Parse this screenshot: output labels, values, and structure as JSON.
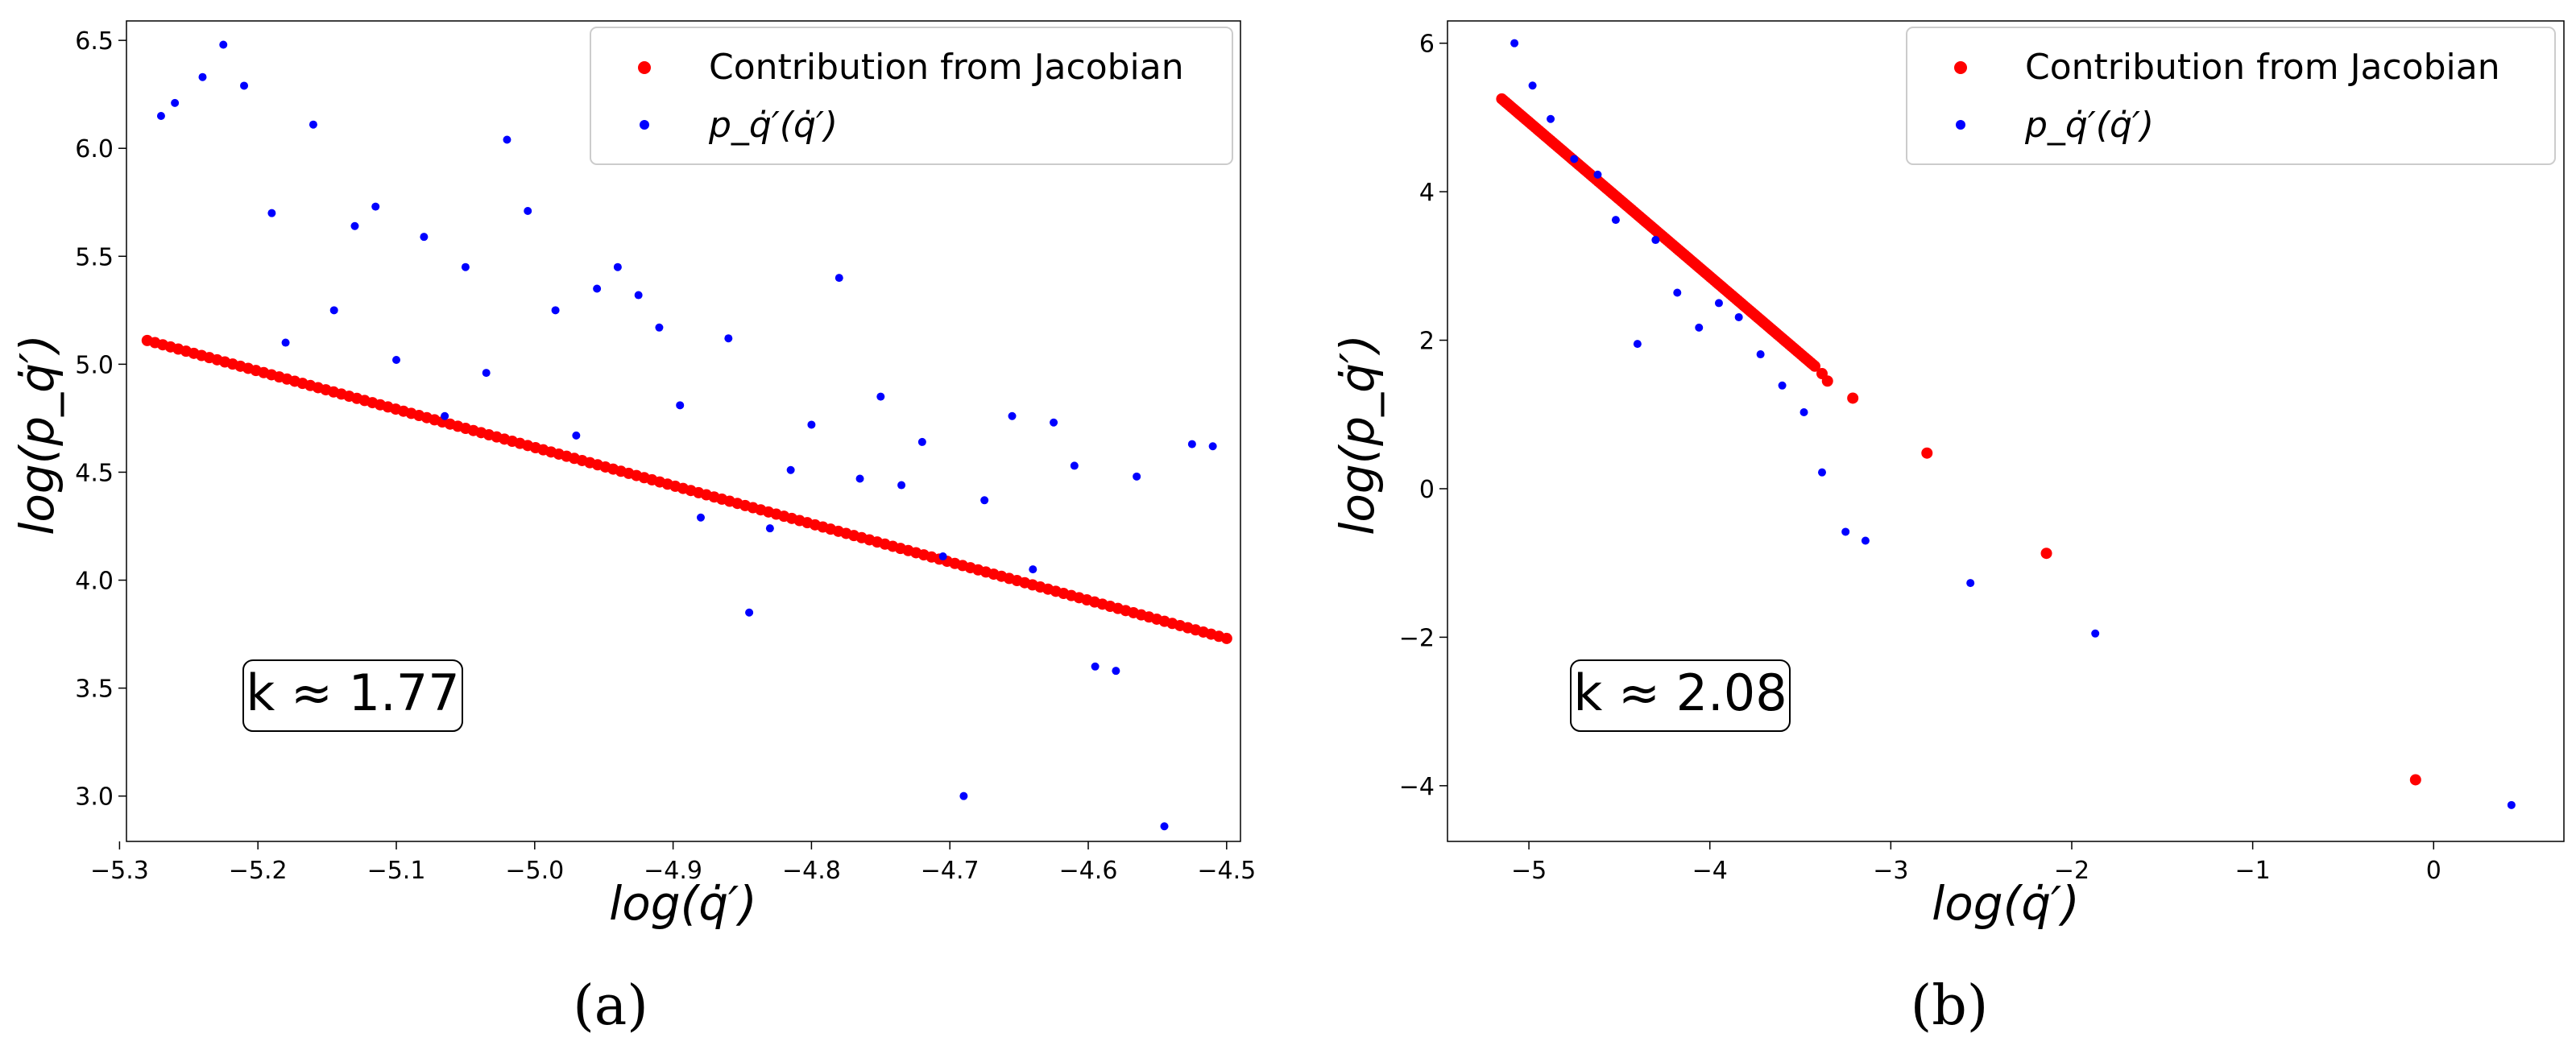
{
  "chart_data": [
    {
      "type": "scatter",
      "panel_label": "(a)",
      "xlabel": "log(q̇′)",
      "ylabel": "log(p_q̇′)",
      "xlim": [
        -5.295,
        -4.49
      ],
      "ylim": [
        2.79,
        6.59
      ],
      "xticks": [
        -5.3,
        -5.2,
        -5.1,
        -5.0,
        -4.9,
        -4.8,
        -4.7,
        -4.6,
        -4.5
      ],
      "xtick_labels": [
        "−5.3",
        "−5.2",
        "−5.1",
        "−5.0",
        "−4.9",
        "−4.8",
        "−4.7",
        "−4.6",
        "−4.5"
      ],
      "yticks": [
        3.0,
        3.5,
        4.0,
        4.5,
        5.0,
        5.5,
        6.0,
        6.5
      ],
      "ytick_labels": [
        "3.0",
        "3.5",
        "4.0",
        "4.5",
        "5.0",
        "5.5",
        "6.0",
        "6.5"
      ],
      "legend_position": "top-right",
      "annotation": "k ≈ 1.77",
      "series": [
        {
          "name": "Contribution from Jacobian",
          "color": "#ff0000",
          "generated_line": {
            "x_start": -5.28,
            "x_end": -4.5,
            "y_start": 5.11,
            "y_end": 3.73,
            "count": 140
          },
          "x": [],
          "y": []
        },
        {
          "name": "p_q̇′(q̇′)",
          "color": "#0000ff",
          "x": [
            -5.27,
            -5.26,
            -5.24,
            -5.225,
            -5.21,
            -5.19,
            -5.18,
            -5.16,
            -5.145,
            -5.13,
            -5.115,
            -5.1,
            -5.08,
            -5.065,
            -5.05,
            -5.035,
            -5.02,
            -5.005,
            -4.985,
            -4.97,
            -4.955,
            -4.94,
            -4.925,
            -4.91,
            -4.895,
            -4.88,
            -4.86,
            -4.845,
            -4.83,
            -4.815,
            -4.8,
            -4.78,
            -4.765,
            -4.75,
            -4.735,
            -4.72,
            -4.705,
            -4.69,
            -4.675,
            -4.655,
            -4.64,
            -4.625,
            -4.61,
            -4.595,
            -4.58,
            -4.565,
            -4.545,
            -4.525,
            -4.51
          ],
          "y": [
            6.15,
            6.21,
            6.33,
            6.48,
            6.29,
            5.7,
            5.1,
            6.11,
            5.25,
            5.64,
            5.73,
            5.02,
            5.59,
            4.76,
            5.45,
            4.96,
            6.04,
            5.71,
            5.25,
            4.67,
            5.35,
            5.45,
            5.32,
            5.17,
            4.81,
            4.29,
            5.12,
            3.85,
            4.24,
            4.51,
            4.72,
            5.4,
            4.47,
            4.85,
            4.44,
            4.64,
            4.11,
            3.0,
            4.37,
            4.76,
            4.05,
            4.73,
            4.53,
            3.6,
            3.58,
            4.48,
            2.86,
            4.63,
            4.62
          ]
        }
      ]
    },
    {
      "type": "scatter",
      "panel_label": "(b)",
      "xlabel": "log(q̇′)",
      "ylabel": "log(p_q̇′)",
      "xlim": [
        -5.45,
        0.72
      ],
      "ylim": [
        -4.75,
        6.3
      ],
      "xticks": [
        -5,
        -4,
        -3,
        -2,
        -1,
        0
      ],
      "xtick_labels": [
        "−5",
        "−4",
        "−3",
        "−2",
        "−1",
        "0"
      ],
      "yticks": [
        -4,
        -2,
        0,
        2,
        4,
        6
      ],
      "ytick_labels": [
        "−4",
        "−2",
        "0",
        "2",
        "4",
        "6"
      ],
      "legend_position": "top-right",
      "annotation": "k ≈ 2.08",
      "series": [
        {
          "name": "Contribution from Jacobian",
          "color": "#ff0000",
          "generated_line": {
            "x_start": -5.15,
            "x_end": -3.42,
            "y_start": 5.25,
            "y_end": 1.65,
            "count": 160
          },
          "x": [
            -3.38,
            -3.35,
            -3.21,
            -2.8,
            -2.14,
            -0.1
          ],
          "y": [
            1.55,
            1.45,
            1.22,
            0.48,
            -0.87,
            -3.92
          ]
        },
        {
          "name": "p_q̇′(q̇′)",
          "color": "#0000ff",
          "x": [
            -5.08,
            -4.98,
            -4.88,
            -4.75,
            -4.62,
            -4.52,
            -4.4,
            -4.3,
            -4.18,
            -4.06,
            -3.95,
            -3.84,
            -3.72,
            -3.6,
            -3.48,
            -3.38,
            -3.25,
            -3.14,
            -2.56,
            -1.87,
            0.43
          ],
          "y": [
            6.0,
            5.43,
            4.98,
            4.44,
            4.23,
            3.62,
            1.95,
            3.35,
            2.64,
            2.17,
            2.5,
            2.31,
            1.81,
            1.39,
            1.03,
            0.22,
            -0.58,
            -0.7,
            -1.27,
            -1.95,
            -4.26
          ]
        }
      ]
    }
  ]
}
